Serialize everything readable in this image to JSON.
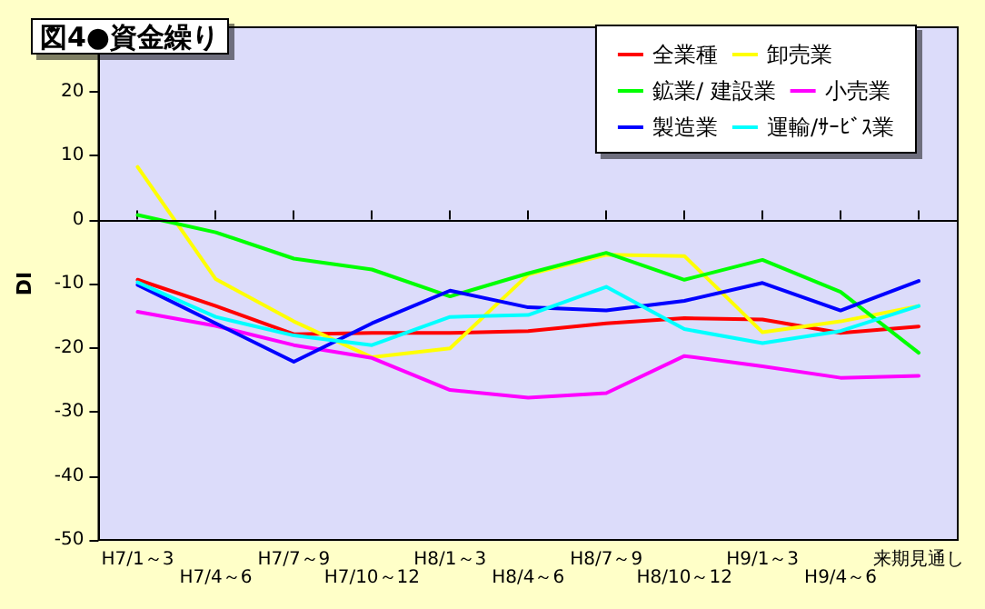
{
  "chart_data": {
    "type": "line",
    "title": "図4●資金繰り",
    "ylabel": "DI",
    "categories": [
      "H7/1～3",
      "H7/4～6",
      "H7/7～9",
      "H7/10～12",
      "H8/1～3",
      "H8/4～6",
      "H8/7～9",
      "H8/10～12",
      "H9/1～3",
      "H9/4～6",
      "来期見通し"
    ],
    "series": [
      {
        "name": "全業種",
        "color": "#ff0000",
        "values": [
          -9.4,
          -13.5,
          -17.9,
          -17.7,
          -17.7,
          -17.4,
          -16.2,
          -15.4,
          -15.6,
          -17.7,
          -16.7
        ]
      },
      {
        "name": "卸売業",
        "color": "#ffff00",
        "values": [
          8.2,
          -9.3,
          -15.9,
          -21.5,
          -20.1,
          -8.6,
          -5.5,
          -5.7,
          -17.6,
          -15.9,
          -13.5
        ]
      },
      {
        "name": "鉱業/ 建設業",
        "color": "#00ff00",
        "values": [
          0.7,
          -2.0,
          -6.1,
          -7.8,
          -12.0,
          -8.4,
          -5.2,
          -9.4,
          -6.3,
          -11.3,
          -20.8
        ]
      },
      {
        "name": "小売業",
        "color": "#ff00ff",
        "values": [
          -14.4,
          -16.6,
          -19.6,
          -21.6,
          -26.6,
          -27.8,
          -27.1,
          -21.3,
          -22.9,
          -24.7,
          -24.4
        ]
      },
      {
        "name": "製造業",
        "color": "#0000ff",
        "values": [
          -10.2,
          -16.2,
          -22.2,
          -16.2,
          -11.1,
          -13.7,
          -14.2,
          -12.7,
          -9.9,
          -14.2,
          -9.6
        ]
      },
      {
        "name": "運輸/ｻｰﾋﾞｽ業",
        "color": "#00ffff",
        "values": [
          -9.8,
          -15.2,
          -18.1,
          -19.6,
          -15.2,
          -14.9,
          -10.5,
          -17.1,
          -19.3,
          -17.4,
          -13.5
        ]
      }
    ],
    "ylim": [
      -50,
      30
    ],
    "yticks": [
      -50,
      -40,
      -30,
      -20,
      -10,
      0,
      10,
      20
    ],
    "ref_lines": [
      {
        "axis": "y",
        "value": 0,
        "color": "#000000"
      }
    ],
    "grid": false,
    "legend": "top right",
    "marker": "none",
    "line_style": "solid"
  }
}
